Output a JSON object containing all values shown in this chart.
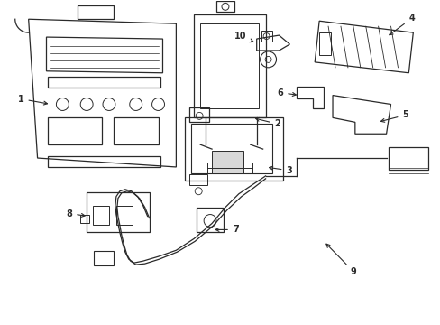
{
  "bg_color": "#ffffff",
  "line_color": "#2a2a2a",
  "label_color": "#000000",
  "figsize": [
    4.89,
    3.6
  ],
  "dpi": 100
}
